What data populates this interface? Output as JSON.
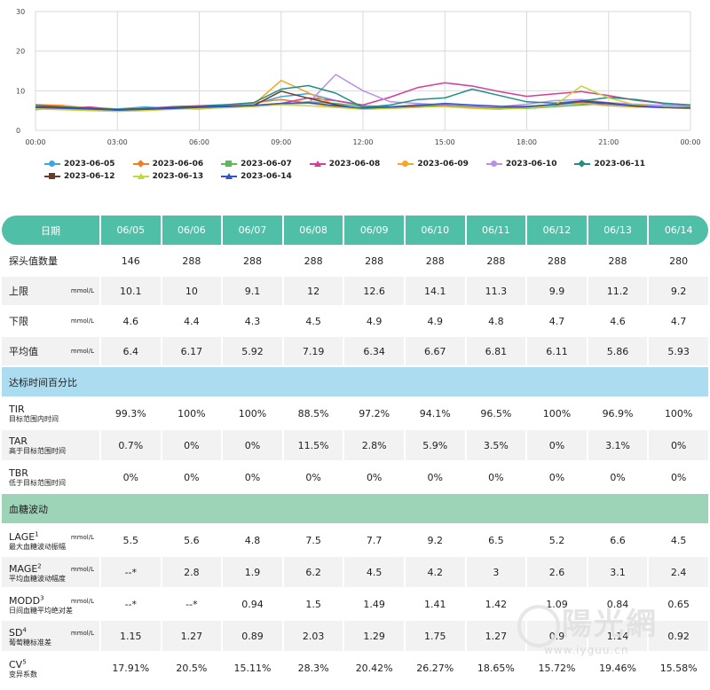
{
  "chart_data": {
    "type": "line",
    "y_ticks": [
      "0",
      "10",
      "20",
      "30"
    ],
    "ylim": [
      0,
      30
    ],
    "x_ticks": [
      "00:00",
      "03:00",
      "06:00",
      "09:00",
      "12:00",
      "15:00",
      "18:00",
      "21:00",
      "00:00"
    ],
    "x_hours": [
      0,
      24
    ],
    "grid": "on",
    "legend_position": "bottom",
    "series": [
      {
        "name": "2023-06-05",
        "color": "#3fa6d9",
        "marker": "circle",
        "points": [
          [
            0,
            5.2
          ],
          [
            1,
            6.0
          ],
          [
            2,
            5.8
          ],
          [
            3,
            5.4
          ],
          [
            4,
            5.9
          ],
          [
            5,
            5.6
          ],
          [
            6,
            6.1
          ],
          [
            7,
            6.3
          ],
          [
            8,
            6.7
          ],
          [
            9,
            8.5
          ],
          [
            10,
            9.3
          ],
          [
            11,
            7.5
          ],
          [
            12,
            6.2
          ],
          [
            13,
            6.0
          ],
          [
            14,
            6.4
          ],
          [
            15,
            6.6
          ],
          [
            16,
            6.2
          ],
          [
            17,
            5.9
          ],
          [
            18,
            6.1
          ],
          [
            19,
            6.5
          ],
          [
            20,
            6.8
          ],
          [
            21,
            6.3
          ],
          [
            22,
            6.0
          ],
          [
            23,
            6.4
          ],
          [
            24,
            6.1
          ]
        ]
      },
      {
        "name": "2023-06-06",
        "color": "#ef7d2a",
        "marker": "diamond",
        "points": [
          [
            0,
            6.5
          ],
          [
            1,
            6.3
          ],
          [
            2,
            5.6
          ],
          [
            3,
            5.1
          ],
          [
            4,
            5.2
          ],
          [
            5,
            5.6
          ],
          [
            6,
            5.9
          ],
          [
            7,
            6.4
          ],
          [
            8,
            7.0
          ],
          [
            9,
            7.8
          ],
          [
            10,
            6.9
          ],
          [
            11,
            6.0
          ],
          [
            12,
            5.6
          ],
          [
            13,
            5.8
          ],
          [
            14,
            6.5
          ],
          [
            15,
            6.2
          ],
          [
            16,
            5.8
          ],
          [
            17,
            5.6
          ],
          [
            18,
            6.0
          ],
          [
            19,
            6.6
          ],
          [
            20,
            7.4
          ],
          [
            21,
            7.0
          ],
          [
            22,
            6.3
          ],
          [
            23,
            5.8
          ],
          [
            24,
            5.6
          ]
        ]
      },
      {
        "name": "2023-06-07",
        "color": "#5cb85c",
        "marker": "square",
        "points": [
          [
            0,
            5.6
          ],
          [
            1,
            5.4
          ],
          [
            2,
            5.2
          ],
          [
            3,
            5.0
          ],
          [
            4,
            5.3
          ],
          [
            5,
            5.5
          ],
          [
            6,
            5.4
          ],
          [
            7,
            5.9
          ],
          [
            8,
            6.2
          ],
          [
            9,
            6.6
          ],
          [
            10,
            7.2
          ],
          [
            11,
            6.8
          ],
          [
            12,
            6.0
          ],
          [
            13,
            5.8
          ],
          [
            14,
            6.1
          ],
          [
            15,
            6.4
          ],
          [
            16,
            6.0
          ],
          [
            17,
            5.8
          ],
          [
            18,
            5.5
          ],
          [
            19,
            6.0
          ],
          [
            20,
            6.4
          ],
          [
            21,
            6.8
          ],
          [
            22,
            6.3
          ],
          [
            23,
            5.9
          ],
          [
            24,
            5.6
          ]
        ]
      },
      {
        "name": "2023-06-08",
        "color": "#d43e9a",
        "marker": "triangle",
        "points": [
          [
            0,
            5.8
          ],
          [
            1,
            5.6
          ],
          [
            2,
            5.9
          ],
          [
            3,
            5.2
          ],
          [
            4,
            5.5
          ],
          [
            5,
            6.0
          ],
          [
            6,
            6.2
          ],
          [
            7,
            6.5
          ],
          [
            8,
            6.3
          ],
          [
            9,
            6.8
          ],
          [
            10,
            8.2
          ],
          [
            11,
            7.5
          ],
          [
            12,
            6.4
          ],
          [
            13,
            8.4
          ],
          [
            14,
            10.8
          ],
          [
            15,
            12.0
          ],
          [
            16,
            11.2
          ],
          [
            17,
            9.8
          ],
          [
            18,
            8.6
          ],
          [
            19,
            9.2
          ],
          [
            20,
            9.8
          ],
          [
            21,
            8.8
          ],
          [
            22,
            7.6
          ],
          [
            23,
            6.8
          ],
          [
            24,
            6.4
          ]
        ]
      },
      {
        "name": "2023-06-09",
        "color": "#f5a623",
        "marker": "circle",
        "points": [
          [
            0,
            5.9
          ],
          [
            1,
            6.2
          ],
          [
            2,
            5.6
          ],
          [
            3,
            5.3
          ],
          [
            4,
            5.5
          ],
          [
            5,
            5.7
          ],
          [
            6,
            6.0
          ],
          [
            7,
            6.1
          ],
          [
            8,
            6.6
          ],
          [
            9,
            12.6
          ],
          [
            10,
            9.5
          ],
          [
            11,
            6.3
          ],
          [
            12,
            5.5
          ],
          [
            13,
            5.9
          ],
          [
            14,
            6.2
          ],
          [
            15,
            6.0
          ],
          [
            16,
            5.6
          ],
          [
            17,
            5.3
          ],
          [
            18,
            5.8
          ],
          [
            19,
            6.4
          ],
          [
            20,
            6.9
          ],
          [
            21,
            6.2
          ],
          [
            22,
            5.9
          ],
          [
            23,
            5.7
          ],
          [
            24,
            5.8
          ]
        ]
      },
      {
        "name": "2023-06-10",
        "color": "#b891e6",
        "marker": "circle",
        "points": [
          [
            0,
            5.4
          ],
          [
            1,
            5.6
          ],
          [
            2,
            5.3
          ],
          [
            3,
            5.0
          ],
          [
            4,
            5.4
          ],
          [
            5,
            5.8
          ],
          [
            6,
            6.0
          ],
          [
            7,
            6.2
          ],
          [
            8,
            6.4
          ],
          [
            9,
            6.6
          ],
          [
            10,
            6.9
          ],
          [
            11,
            14.1
          ],
          [
            12,
            10.0
          ],
          [
            13,
            7.2
          ],
          [
            14,
            6.8
          ],
          [
            15,
            6.4
          ],
          [
            16,
            6.1
          ],
          [
            17,
            6.0
          ],
          [
            18,
            6.6
          ],
          [
            19,
            7.5
          ],
          [
            20,
            7.8
          ],
          [
            21,
            7.0
          ],
          [
            22,
            6.6
          ],
          [
            23,
            6.3
          ],
          [
            24,
            6.2
          ]
        ]
      },
      {
        "name": "2023-06-11",
        "color": "#1f8f82",
        "marker": "diamond",
        "points": [
          [
            0,
            6.3
          ],
          [
            1,
            5.9
          ],
          [
            2,
            5.6
          ],
          [
            3,
            5.3
          ],
          [
            4,
            5.5
          ],
          [
            5,
            5.8
          ],
          [
            6,
            6.1
          ],
          [
            7,
            6.5
          ],
          [
            8,
            7.0
          ],
          [
            9,
            10.4
          ],
          [
            10,
            11.3
          ],
          [
            11,
            9.4
          ],
          [
            12,
            5.8
          ],
          [
            13,
            6.4
          ],
          [
            14,
            7.8
          ],
          [
            15,
            8.2
          ],
          [
            16,
            10.4
          ],
          [
            17,
            8.8
          ],
          [
            18,
            7.2
          ],
          [
            19,
            6.9
          ],
          [
            20,
            7.4
          ],
          [
            21,
            8.3
          ],
          [
            22,
            7.8
          ],
          [
            23,
            6.9
          ],
          [
            24,
            6.4
          ]
        ]
      },
      {
        "name": "2023-06-12",
        "color": "#6b3b2a",
        "marker": "square",
        "points": [
          [
            0,
            5.9
          ],
          [
            1,
            5.8
          ],
          [
            2,
            5.5
          ],
          [
            3,
            5.2
          ],
          [
            4,
            5.4
          ],
          [
            5,
            5.7
          ],
          [
            6,
            5.9
          ],
          [
            7,
            6.1
          ],
          [
            8,
            6.3
          ],
          [
            9,
            9.9
          ],
          [
            10,
            8.1
          ],
          [
            11,
            6.5
          ],
          [
            12,
            5.4
          ],
          [
            13,
            5.6
          ],
          [
            14,
            5.9
          ],
          [
            15,
            6.2
          ],
          [
            16,
            5.8
          ],
          [
            17,
            5.5
          ],
          [
            18,
            5.7
          ],
          [
            19,
            6.4
          ],
          [
            20,
            7.4
          ],
          [
            21,
            6.9
          ],
          [
            22,
            6.1
          ],
          [
            23,
            5.8
          ],
          [
            24,
            5.5
          ]
        ]
      },
      {
        "name": "2023-06-13",
        "color": "#c7d63a",
        "marker": "triangle",
        "points": [
          [
            0,
            5.4
          ],
          [
            1,
            5.2
          ],
          [
            2,
            5.0
          ],
          [
            3,
            4.8
          ],
          [
            4,
            5.0
          ],
          [
            5,
            5.3
          ],
          [
            6,
            5.5
          ],
          [
            7,
            5.7
          ],
          [
            8,
            6.0
          ],
          [
            9,
            6.5
          ],
          [
            10,
            6.2
          ],
          [
            11,
            5.8
          ],
          [
            12,
            5.3
          ],
          [
            13,
            5.5
          ],
          [
            14,
            5.8
          ],
          [
            15,
            6.1
          ],
          [
            16,
            5.7
          ],
          [
            17,
            5.4
          ],
          [
            18,
            5.6
          ],
          [
            19,
            6.2
          ],
          [
            20,
            11.2
          ],
          [
            21,
            8.2
          ],
          [
            22,
            6.4
          ],
          [
            23,
            5.9
          ],
          [
            24,
            5.6
          ]
        ]
      },
      {
        "name": "2023-06-14",
        "color": "#3355c9",
        "marker": "triangle",
        "points": [
          [
            0,
            5.8
          ],
          [
            1,
            5.6
          ],
          [
            2,
            5.4
          ],
          [
            3,
            5.1
          ],
          [
            4,
            5.3
          ],
          [
            5,
            5.5
          ],
          [
            6,
            5.8
          ],
          [
            7,
            6.0
          ],
          [
            8,
            6.3
          ],
          [
            9,
            6.8
          ],
          [
            10,
            7.0
          ],
          [
            11,
            6.2
          ],
          [
            12,
            5.6
          ],
          [
            13,
            5.9
          ],
          [
            14,
            6.3
          ],
          [
            15,
            6.8
          ],
          [
            16,
            6.4
          ],
          [
            17,
            6.1
          ],
          [
            18,
            6.0
          ],
          [
            19,
            6.5
          ],
          [
            20,
            7.2
          ],
          [
            21,
            6.7
          ],
          [
            22,
            6.2
          ],
          [
            23,
            5.8
          ],
          [
            24,
            5.7
          ]
        ]
      }
    ]
  },
  "table": {
    "header_label": "日期",
    "dates": [
      "06/05",
      "06/06",
      "06/07",
      "06/08",
      "06/09",
      "06/10",
      "06/11",
      "06/12",
      "06/13",
      "06/14"
    ],
    "basic_rows": [
      {
        "label": "探头值数量",
        "unit": "",
        "values": [
          "146",
          "288",
          "288",
          "288",
          "288",
          "288",
          "288",
          "288",
          "288",
          "280"
        ]
      },
      {
        "label": "上限",
        "unit": "mmol/L",
        "values": [
          "10.1",
          "10",
          "9.1",
          "12",
          "12.6",
          "14.1",
          "11.3",
          "9.9",
          "11.2",
          "9.2"
        ]
      },
      {
        "label": "下限",
        "unit": "mmol/L",
        "values": [
          "4.6",
          "4.4",
          "4.3",
          "4.5",
          "4.9",
          "4.9",
          "4.8",
          "4.7",
          "4.6",
          "4.7"
        ]
      },
      {
        "label": "平均值",
        "unit": "mmol/L",
        "values": [
          "6.4",
          "6.17",
          "5.92",
          "7.19",
          "6.34",
          "6.67",
          "6.81",
          "6.11",
          "5.86",
          "5.93"
        ]
      }
    ],
    "section_target": "达标时间百分比",
    "target_rows": [
      {
        "label": "TIR",
        "sub": "目标范围内时间",
        "values": [
          "99.3%",
          "100%",
          "100%",
          "88.5%",
          "97.2%",
          "94.1%",
          "96.5%",
          "100%",
          "96.9%",
          "100%"
        ]
      },
      {
        "label": "TAR",
        "sub": "高于目标范围时间",
        "values": [
          "0.7%",
          "0%",
          "0%",
          "11.5%",
          "2.8%",
          "5.9%",
          "3.5%",
          "0%",
          "3.1%",
          "0%"
        ]
      },
      {
        "label": "TBR",
        "sub": "低于目标范围时间",
        "values": [
          "0%",
          "0%",
          "0%",
          "0%",
          "0%",
          "0%",
          "0%",
          "0%",
          "0%",
          "0%"
        ]
      }
    ],
    "section_fluct": "血糖波动",
    "fluct_rows": [
      {
        "label": "LAGE",
        "sup": "1",
        "unit": "mmol/L",
        "sub": "最大血糖波动振幅",
        "values": [
          "5.5",
          "5.6",
          "4.8",
          "7.5",
          "7.7",
          "9.2",
          "6.5",
          "5.2",
          "6.6",
          "4.5"
        ]
      },
      {
        "label": "MAGE",
        "sup": "2",
        "unit": "mmol/L",
        "sub": "平均血糖波动幅度",
        "values": [
          "--*",
          "2.8",
          "1.9",
          "6.2",
          "4.5",
          "4.2",
          "3",
          "2.6",
          "3.1",
          "2.4"
        ]
      },
      {
        "label": "MODD",
        "sup": "3",
        "unit": "mmol/L",
        "sub": "日间血糖平均绝对差",
        "values": [
          "--*",
          "--*",
          "0.94",
          "1.5",
          "1.49",
          "1.41",
          "1.42",
          "1.09",
          "0.84",
          "0.65"
        ]
      },
      {
        "label": "SD",
        "sup": "4",
        "unit": "mmol/L",
        "sub": "葡萄糖标准差",
        "values": [
          "1.15",
          "1.27",
          "0.89",
          "2.03",
          "1.29",
          "1.75",
          "1.27",
          "0.9",
          "1.14",
          "0.92"
        ]
      },
      {
        "label": "CV",
        "sup": "5",
        "unit": "",
        "sub": "变异系数",
        "values": [
          "17.91%",
          "20.5%",
          "15.11%",
          "28.3%",
          "20.42%",
          "26.27%",
          "18.65%",
          "15.72%",
          "19.46%",
          "15.58%"
        ]
      }
    ]
  },
  "watermark": {
    "big": "陽光網",
    "small": "www.iyguu.cn"
  }
}
